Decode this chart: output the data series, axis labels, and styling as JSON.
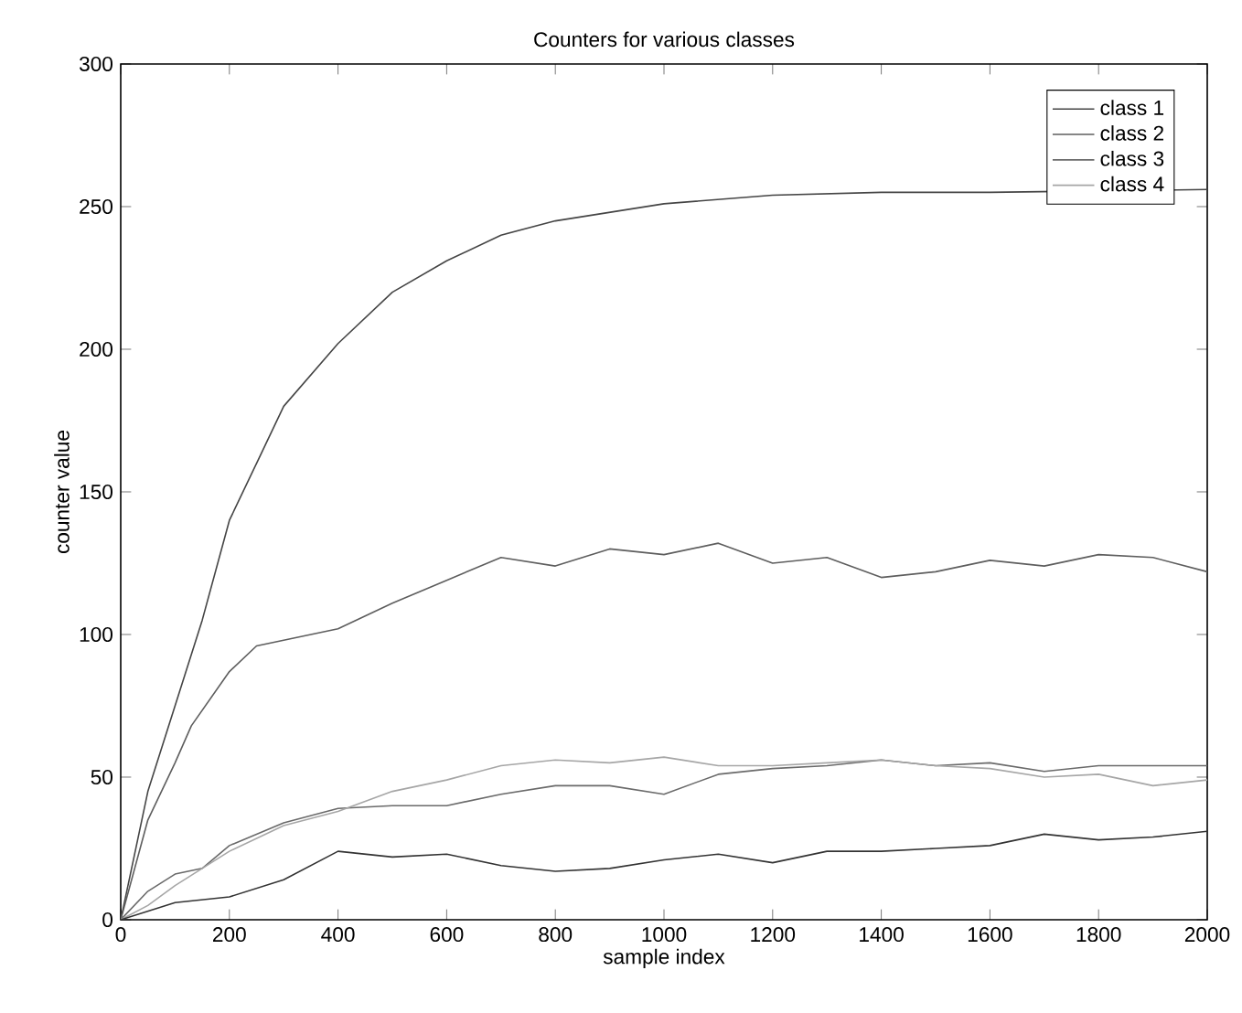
{
  "chart_data": {
    "type": "line",
    "title": "Counters for various classes",
    "xlabel": "sample index",
    "ylabel": "counter value",
    "xlim": [
      0,
      2000
    ],
    "ylim": [
      0,
      300
    ],
    "xticks": [
      0,
      200,
      400,
      600,
      800,
      1000,
      1200,
      1400,
      1600,
      1800,
      2000
    ],
    "yticks": [
      0,
      50,
      100,
      150,
      200,
      250,
      300
    ],
    "grid": false,
    "legend": "top right",
    "line_style": "solid",
    "marker": "none",
    "series": [
      {
        "name": "class 1",
        "color": "#454545",
        "x": [
          0,
          50,
          100,
          150,
          200,
          250,
          300,
          400,
          500,
          600,
          700,
          800,
          900,
          1000,
          1200,
          1400,
          1600,
          1800,
          2000
        ],
        "values": [
          0,
          45,
          75,
          105,
          140,
          160,
          180,
          202,
          220,
          231,
          240,
          245,
          248,
          251,
          254,
          255,
          255,
          null,
          256
        ]
      },
      {
        "name": "class 2",
        "color": "#5e5e5e",
        "x": [
          0,
          50,
          100,
          130,
          200,
          250,
          400,
          500,
          600,
          700,
          800,
          900,
          1000,
          1100,
          1200,
          1300,
          1400,
          1500,
          1600,
          1700,
          1800,
          1900,
          2000
        ],
        "values": [
          0,
          35,
          55,
          68,
          87,
          96,
          102,
          111,
          119,
          127,
          124,
          130,
          128,
          132,
          125,
          127,
          120,
          122,
          126,
          124,
          128,
          127,
          122
        ]
      },
      {
        "name": "class 3",
        "color": "#6a6a6a",
        "x": [
          0,
          50,
          100,
          150,
          200,
          300,
          400,
          500,
          600,
          700,
          800,
          900,
          1000,
          1100,
          1200,
          1300,
          1400,
          1500,
          1600,
          1700,
          1800,
          1900,
          2000
        ],
        "values": [
          0,
          10,
          16,
          18,
          26,
          34,
          39,
          40,
          40,
          44,
          47,
          47,
          44,
          51,
          53,
          54,
          56,
          54,
          55,
          52,
          54,
          54,
          54
        ]
      },
      {
        "name": "class 4",
        "color": "#a6a6a6",
        "x": [
          0,
          50,
          100,
          150,
          200,
          300,
          400,
          500,
          600,
          700,
          800,
          900,
          1000,
          1100,
          1200,
          1300,
          1400,
          1500,
          1600,
          1700,
          1800,
          1900,
          2000
        ],
        "values": [
          0,
          5,
          12,
          18,
          24,
          33,
          38,
          45,
          49,
          54,
          56,
          55,
          57,
          54,
          54,
          55,
          56,
          54,
          53,
          50,
          51,
          47,
          49
        ]
      },
      {
        "color": "#333333",
        "x": [
          0,
          100,
          200,
          300,
          400,
          500,
          600,
          700,
          800,
          900,
          1000,
          1100,
          1200,
          1300,
          1400,
          1500,
          1600,
          1700,
          1800,
          1900,
          2000
        ],
        "values": [
          0,
          6,
          8,
          14,
          24,
          22,
          23,
          19,
          17,
          18,
          21,
          23,
          20,
          24,
          24,
          25,
          26,
          30,
          28,
          29,
          31
        ]
      }
    ]
  }
}
